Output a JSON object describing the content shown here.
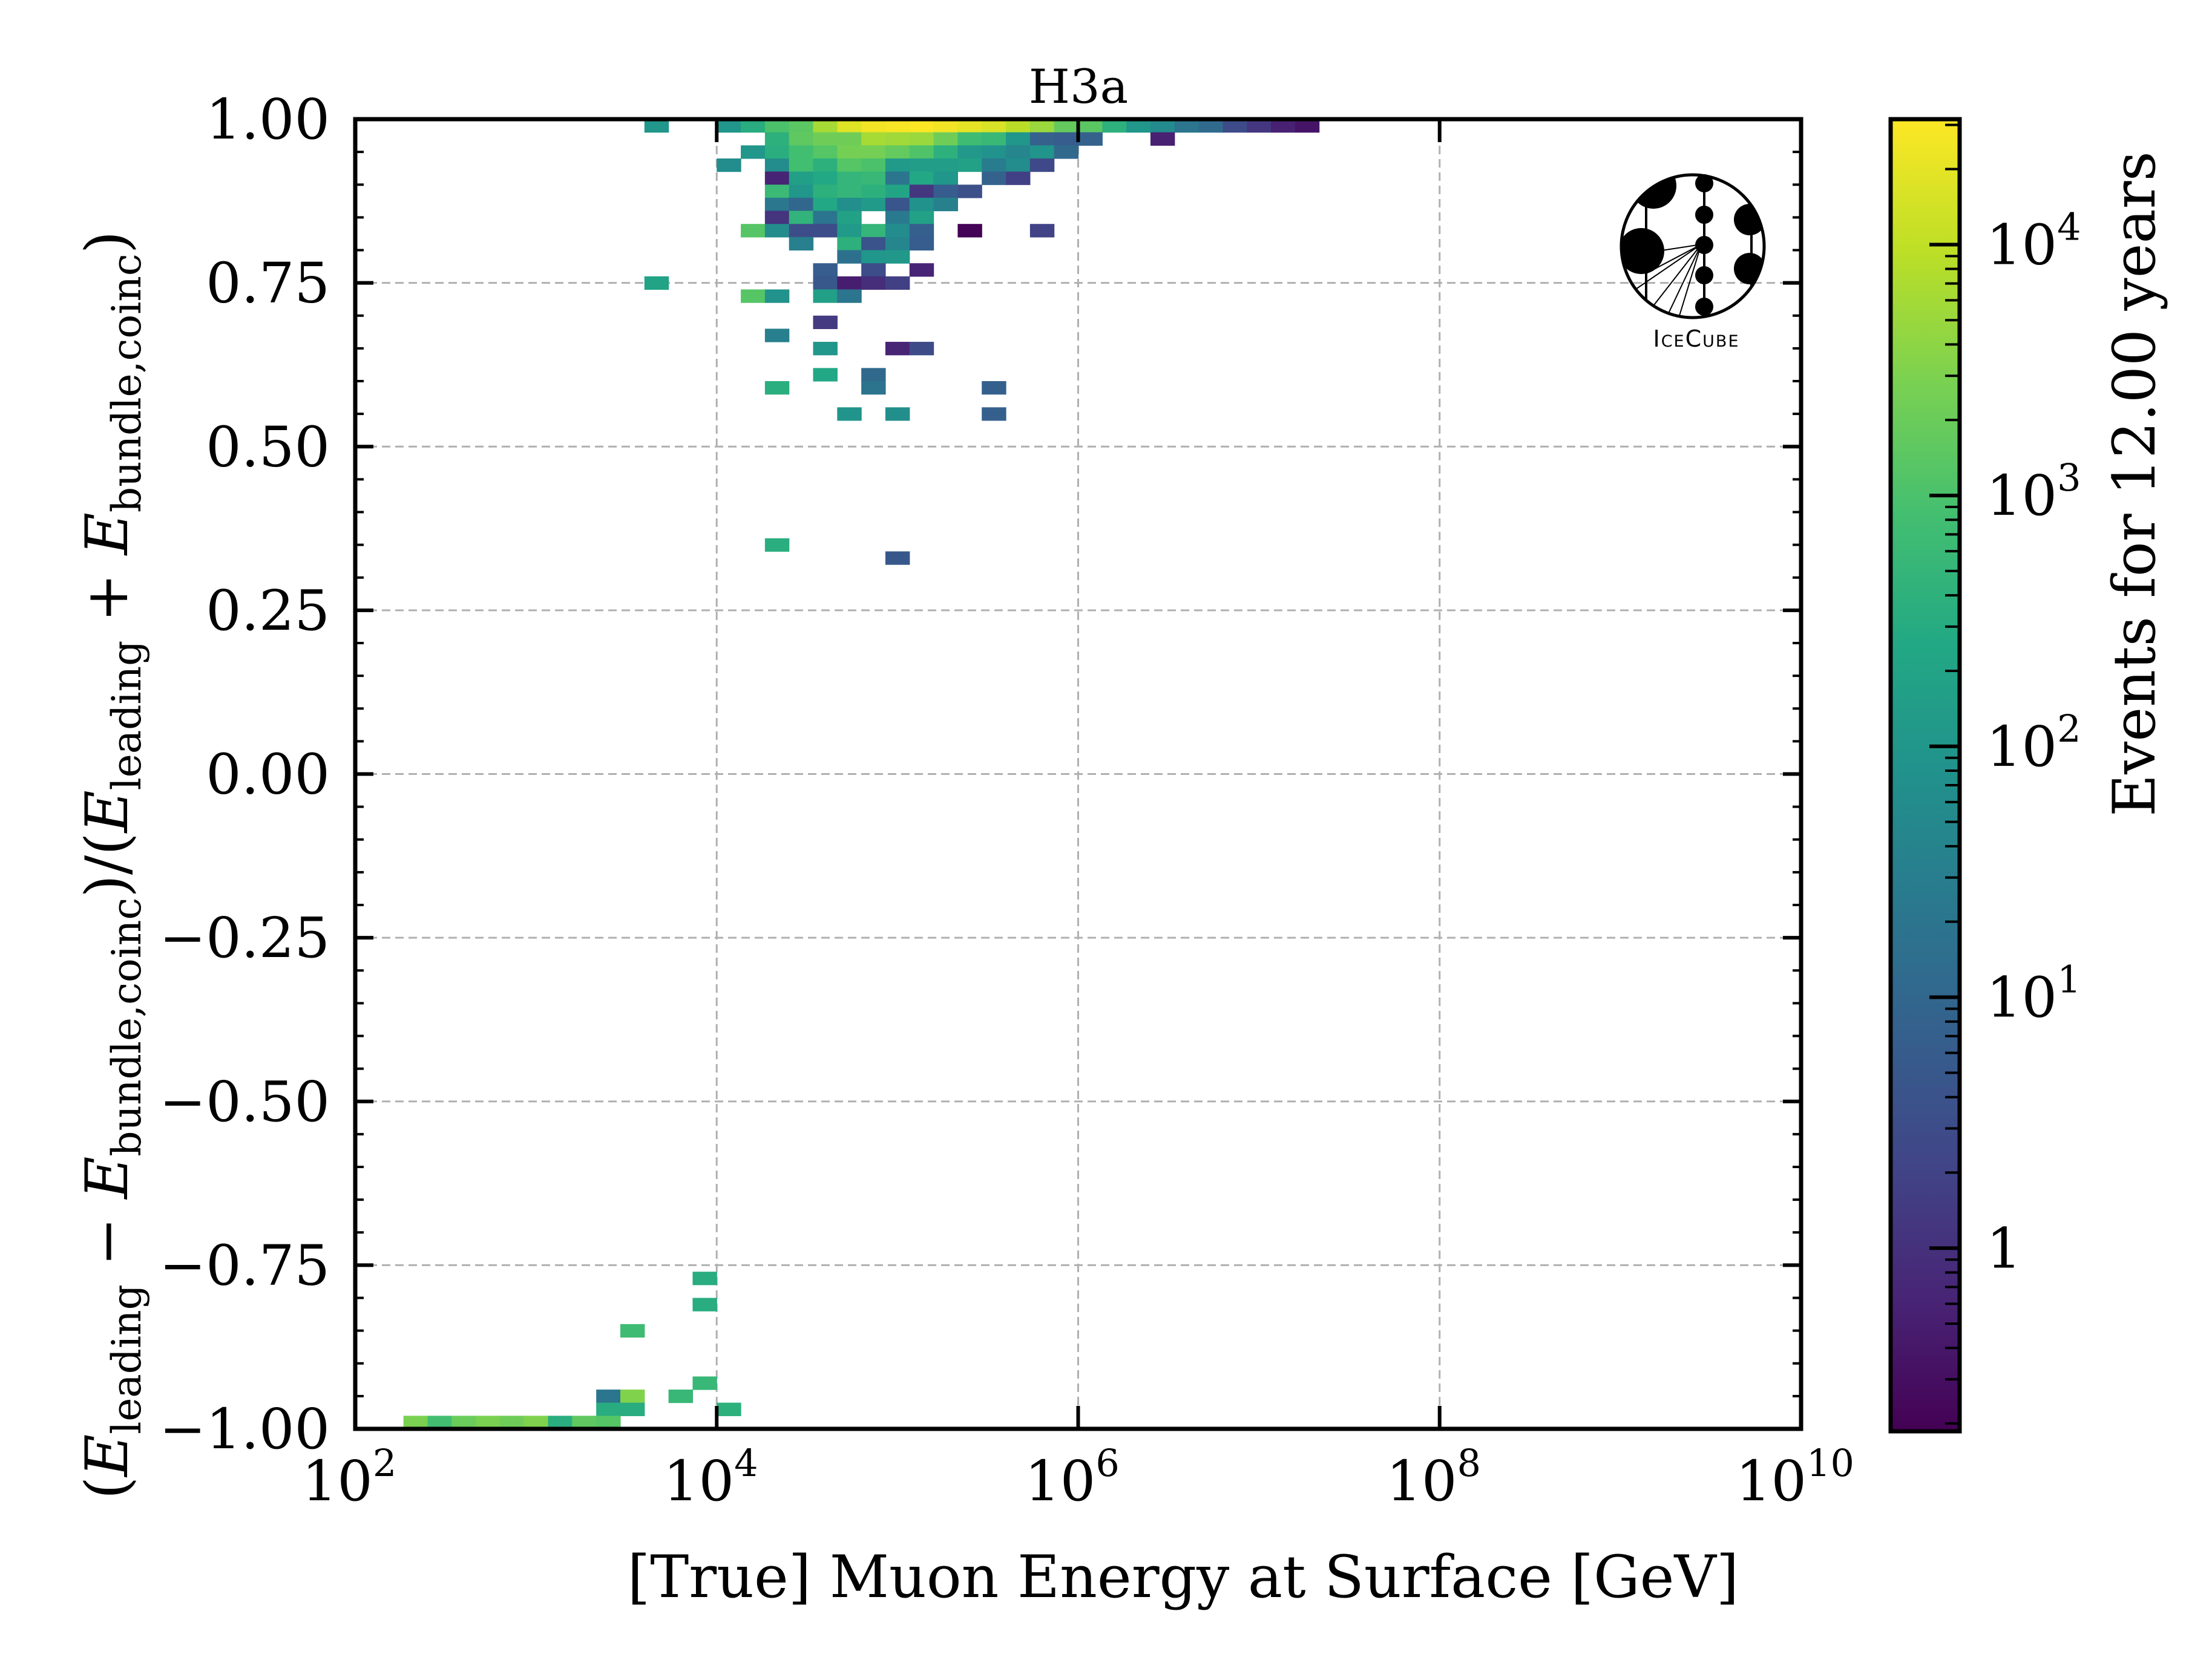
{
  "chart_data": {
    "type": "heatmap",
    "title": "H3a",
    "xlabel": "[True] Muon Energy at Surface [GeV]",
    "ylabel": {
      "open": "(",
      "E1": "E",
      "sub1": "leading",
      "minus": " − ",
      "E2": "E",
      "sub2": "bundle,coinc",
      "mid": ")/(",
      "E3": "E",
      "sub3": "leading",
      "plus": " + ",
      "E4": "E",
      "sub4": "bundle,coinc",
      "close": ")"
    },
    "xscale": "log",
    "xlim_log10": [
      2,
      10
    ],
    "ylim": [
      -1.0,
      1.0
    ],
    "x_bins": {
      "count": 60,
      "log10_min": 2,
      "log10_max": 10
    },
    "y_bins": {
      "count": 100,
      "min": -1.0,
      "max": 1.0
    },
    "xticks": [
      {
        "log10": 2,
        "base": "10",
        "exp": "2"
      },
      {
        "log10": 4,
        "base": "10",
        "exp": "4"
      },
      {
        "log10": 6,
        "base": "10",
        "exp": "6"
      },
      {
        "log10": 8,
        "base": "10",
        "exp": "8"
      },
      {
        "log10": 10,
        "base": "10",
        "exp": "10"
      }
    ],
    "yticks": [
      {
        "value": 1.0,
        "label": "1.00"
      },
      {
        "value": 0.75,
        "label": "0.75"
      },
      {
        "value": 0.5,
        "label": "0.50"
      },
      {
        "value": 0.25,
        "label": "0.25"
      },
      {
        "value": 0.0,
        "label": "0.00"
      },
      {
        "value": -0.25,
        "label": "−0.25"
      },
      {
        "value": -0.5,
        "label": "−0.50"
      },
      {
        "value": -0.75,
        "label": "−0.75"
      },
      {
        "value": -1.0,
        "label": "−1.00"
      }
    ],
    "grid": true,
    "colormap": "viridis",
    "color_scale": "log",
    "colorbar": {
      "label": "Events for 12.00 years",
      "log10_min": -0.73,
      "log10_max": 4.5,
      "ticks": [
        {
          "log10": 0,
          "base": "1",
          "exp": ""
        },
        {
          "log10": 1,
          "base": "10",
          "exp": "1"
        },
        {
          "log10": 2,
          "base": "10",
          "exp": "2"
        },
        {
          "log10": 3,
          "base": "10",
          "exp": "3"
        },
        {
          "log10": 4,
          "base": "10",
          "exp": "4"
        }
      ]
    },
    "cells_note": "each cell = [x_bin_index (0=10^2), y_bin_index_from_top (0 = 0.98..1.00), log10(events)]",
    "cells": [
      [
        12,
        0,
        2.0
      ],
      [
        15,
        0,
        2.0
      ],
      [
        16,
        0,
        2.5
      ],
      [
        17,
        0,
        3.0
      ],
      [
        18,
        0,
        3.15
      ],
      [
        19,
        0,
        3.8
      ],
      [
        20,
        0,
        4.25
      ],
      [
        21,
        0,
        4.4
      ],
      [
        22,
        0,
        4.45
      ],
      [
        23,
        0,
        4.5
      ],
      [
        24,
        0,
        4.4
      ],
      [
        25,
        0,
        4.3
      ],
      [
        26,
        0,
        4.2
      ],
      [
        27,
        0,
        3.95
      ],
      [
        28,
        0,
        3.7
      ],
      [
        29,
        0,
        3.25
      ],
      [
        30,
        0,
        3.15
      ],
      [
        31,
        0,
        2.6
      ],
      [
        32,
        0,
        2.0
      ],
      [
        33,
        0,
        1.75
      ],
      [
        34,
        0,
        1.3
      ],
      [
        35,
        0,
        1.1
      ],
      [
        36,
        0,
        0.45
      ],
      [
        37,
        0,
        0.1
      ],
      [
        38,
        0,
        -0.25
      ],
      [
        39,
        0,
        -0.45
      ],
      [
        17,
        1,
        2.6
      ],
      [
        18,
        1,
        3.2
      ],
      [
        19,
        1,
        3.35
      ],
      [
        20,
        1,
        3.35
      ],
      [
        21,
        1,
        3.8
      ],
      [
        22,
        1,
        3.75
      ],
      [
        23,
        1,
        3.7
      ],
      [
        24,
        1,
        3.35
      ],
      [
        25,
        1,
        2.85
      ],
      [
        26,
        1,
        2.75
      ],
      [
        27,
        1,
        2.0
      ],
      [
        28,
        1,
        0.9
      ],
      [
        29,
        1,
        0.8
      ],
      [
        30,
        1,
        0.9
      ],
      [
        33,
        1,
        -0.25
      ],
      [
        16,
        2,
        2.0
      ],
      [
        17,
        2,
        2.55
      ],
      [
        18,
        2,
        2.9
      ],
      [
        19,
        2,
        3.1
      ],
      [
        20,
        2,
        3.4
      ],
      [
        21,
        2,
        3.4
      ],
      [
        22,
        2,
        3.25
      ],
      [
        23,
        2,
        3.05
      ],
      [
        24,
        2,
        2.6
      ],
      [
        25,
        2,
        2.05
      ],
      [
        26,
        2,
        1.9
      ],
      [
        27,
        2,
        1.65
      ],
      [
        28,
        2,
        1.95
      ],
      [
        29,
        2,
        1.05
      ],
      [
        15,
        3,
        1.8
      ],
      [
        17,
        3,
        1.8
      ],
      [
        18,
        3,
        2.9
      ],
      [
        19,
        3,
        2.6
      ],
      [
        20,
        3,
        3.1
      ],
      [
        21,
        3,
        3.0
      ],
      [
        22,
        3,
        2.1
      ],
      [
        23,
        3,
        2.15
      ],
      [
        24,
        3,
        2.15
      ],
      [
        25,
        3,
        2.25
      ],
      [
        26,
        3,
        1.45
      ],
      [
        27,
        3,
        1.8
      ],
      [
        28,
        3,
        0.4
      ],
      [
        17,
        4,
        -0.2
      ],
      [
        18,
        4,
        2.2
      ],
      [
        19,
        4,
        2.4
      ],
      [
        20,
        4,
        2.7
      ],
      [
        21,
        4,
        2.75
      ],
      [
        22,
        4,
        1.3
      ],
      [
        23,
        4,
        2.4
      ],
      [
        24,
        4,
        2.0
      ],
      [
        26,
        4,
        0.9
      ],
      [
        27,
        4,
        0.25
      ],
      [
        17,
        5,
        2.8
      ],
      [
        18,
        5,
        2.0
      ],
      [
        19,
        5,
        2.6
      ],
      [
        20,
        5,
        2.7
      ],
      [
        21,
        5,
        2.6
      ],
      [
        22,
        5,
        2.35
      ],
      [
        23,
        5,
        0.1
      ],
      [
        24,
        5,
        0.8
      ],
      [
        25,
        5,
        0.55
      ],
      [
        17,
        6,
        1.35
      ],
      [
        18,
        6,
        1.0
      ],
      [
        19,
        6,
        2.4
      ],
      [
        20,
        6,
        1.85
      ],
      [
        21,
        6,
        2.1
      ],
      [
        22,
        6,
        0.65
      ],
      [
        23,
        6,
        1.9
      ],
      [
        24,
        6,
        1.55
      ],
      [
        17,
        7,
        0.05
      ],
      [
        18,
        7,
        2.65
      ],
      [
        19,
        7,
        1.3
      ],
      [
        20,
        7,
        2.25
      ],
      [
        22,
        7,
        1.4
      ],
      [
        23,
        7,
        2.25
      ],
      [
        16,
        8,
        3.1
      ],
      [
        17,
        8,
        1.8
      ],
      [
        18,
        8,
        0.5
      ],
      [
        19,
        8,
        0.5
      ],
      [
        20,
        8,
        2.1
      ],
      [
        21,
        8,
        2.7
      ],
      [
        22,
        8,
        1.8
      ],
      [
        23,
        8,
        0.85
      ],
      [
        25,
        8,
        -0.7
      ],
      [
        28,
        8,
        0.3
      ],
      [
        18,
        9,
        1.5
      ],
      [
        20,
        9,
        2.6
      ],
      [
        21,
        9,
        0.6
      ],
      [
        22,
        9,
        1.65
      ],
      [
        23,
        9,
        0.8
      ],
      [
        20,
        10,
        1.2
      ],
      [
        21,
        10,
        2.0
      ],
      [
        22,
        10,
        2.05
      ],
      [
        19,
        11,
        0.8
      ],
      [
        21,
        11,
        0.5
      ],
      [
        23,
        11,
        -0.2
      ],
      [
        12,
        12,
        2.3
      ],
      [
        19,
        12,
        0.7
      ],
      [
        20,
        12,
        -0.3
      ],
      [
        21,
        12,
        -0.05
      ],
      [
        22,
        12,
        0.25
      ],
      [
        16,
        13,
        3.1
      ],
      [
        17,
        13,
        1.9
      ],
      [
        19,
        13,
        2.2
      ],
      [
        20,
        13,
        1.3
      ],
      [
        19,
        15,
        0.15
      ],
      [
        17,
        16,
        1.5
      ],
      [
        19,
        17,
        2.0
      ],
      [
        22,
        17,
        -0.2
      ],
      [
        23,
        17,
        0.45
      ],
      [
        19,
        19,
        2.4
      ],
      [
        21,
        19,
        1.05
      ],
      [
        17,
        20,
        2.55
      ],
      [
        21,
        20,
        1.25
      ],
      [
        26,
        20,
        0.85
      ],
      [
        20,
        22,
        1.95
      ],
      [
        22,
        22,
        1.85
      ],
      [
        26,
        22,
        0.85
      ],
      [
        17,
        32,
        2.55
      ],
      [
        22,
        33,
        0.7
      ],
      [
        14,
        88,
        2.5
      ],
      [
        14,
        90,
        2.5
      ],
      [
        11,
        92,
        2.85
      ],
      [
        14,
        96,
        2.75
      ],
      [
        10,
        97,
        1.3
      ],
      [
        11,
        97,
        3.5
      ],
      [
        13,
        97,
        2.75
      ],
      [
        10,
        98,
        2.5
      ],
      [
        11,
        98,
        2.5
      ],
      [
        15,
        98,
        2.6
      ],
      [
        2,
        99,
        3.45
      ],
      [
        3,
        99,
        2.9
      ],
      [
        4,
        99,
        3.3
      ],
      [
        5,
        99,
        3.45
      ],
      [
        6,
        99,
        3.35
      ],
      [
        7,
        99,
        3.5
      ],
      [
        8,
        99,
        2.55
      ],
      [
        9,
        99,
        3.2
      ],
      [
        10,
        99,
        3.1
      ]
    ]
  },
  "logo": {
    "name": "IceCube",
    "text": "IceCube"
  }
}
